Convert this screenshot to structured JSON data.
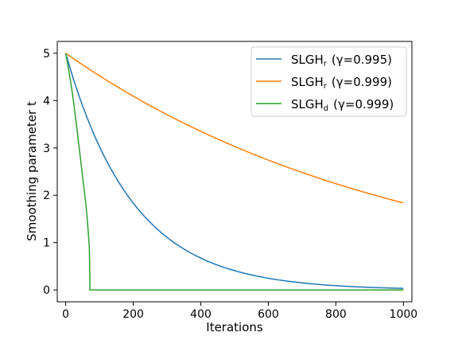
{
  "chart_data": {
    "type": "line",
    "title": "",
    "xlabel": "Iterations",
    "ylabel": "Smoothing parameter t",
    "xlim": [
      -25,
      1025
    ],
    "ylim": [
      -0.25,
      5.25
    ],
    "xticks": [
      0,
      200,
      400,
      600,
      800,
      1000
    ],
    "yticks": [
      0,
      1,
      2,
      3,
      4,
      5
    ],
    "grid": false,
    "legend_position": "top-right",
    "series": [
      {
        "name": "SLGH",
        "subscript": "r",
        "gamma_label": "(γ=0.995)",
        "color": "#1f77b4",
        "x": [
          0,
          50,
          100,
          150,
          200,
          250,
          300,
          350,
          400,
          450,
          500,
          550,
          600,
          650,
          700,
          750,
          800,
          850,
          900,
          950,
          1000
        ],
        "values": [
          5.0,
          3.89,
          3.03,
          2.36,
          1.83,
          1.43,
          1.11,
          0.87,
          0.67,
          0.52,
          0.41,
          0.32,
          0.25,
          0.19,
          0.15,
          0.12,
          0.09,
          0.07,
          0.06,
          0.04,
          0.03
        ]
      },
      {
        "name": "SLGH",
        "subscript": "r",
        "gamma_label": "(γ=0.999)",
        "color": "#ff7f0e",
        "x": [
          0,
          50,
          100,
          150,
          200,
          250,
          300,
          350,
          400,
          450,
          500,
          550,
          600,
          650,
          700,
          750,
          800,
          850,
          900,
          950,
          1000
        ],
        "values": [
          5.0,
          4.76,
          4.52,
          4.3,
          4.09,
          3.89,
          3.7,
          3.52,
          3.35,
          3.19,
          3.03,
          2.88,
          2.74,
          2.61,
          2.48,
          2.36,
          2.25,
          2.14,
          2.03,
          1.93,
          1.84
        ]
      },
      {
        "name": "SLGH",
        "subscript": "d",
        "gamma_label": "(γ=0.999)",
        "color": "#2ca02c",
        "x": [
          0,
          10,
          20,
          30,
          40,
          50,
          60,
          65,
          70,
          72,
          100,
          200,
          400,
          600,
          800,
          1000
        ],
        "values": [
          5.0,
          4.6,
          4.15,
          3.6,
          3.0,
          2.4,
          1.8,
          1.4,
          0.9,
          0.0,
          0.0,
          0.0,
          0.0,
          0.0,
          0.0,
          0.0
        ]
      }
    ]
  }
}
